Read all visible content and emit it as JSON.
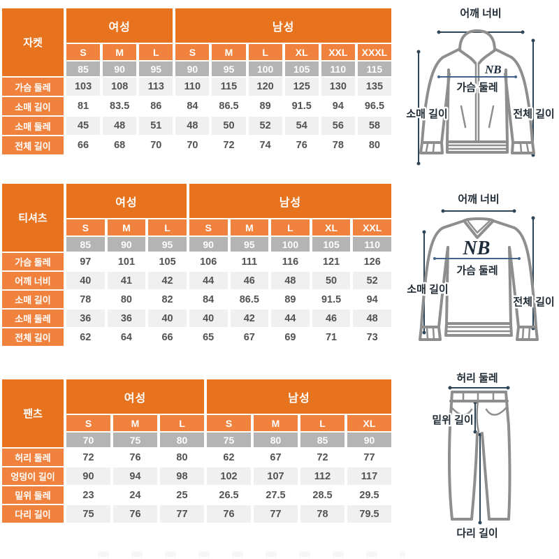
{
  "colors": {
    "header_orange": "#E7731F",
    "subheader_orange": "#F0823D",
    "size_gray": "#B4B4B4",
    "stripe_gray": "#F0F0F0",
    "value_text": "#525252",
    "diagram_outline": "#8E8E8E",
    "dimension_line": "#2E4557",
    "chest_line": "#43648A",
    "diagram_label": "#212B35"
  },
  "tables": [
    {
      "title": "자켓",
      "groups": [
        {
          "label": "여성",
          "sizes": [
            "S",
            "M",
            "L"
          ],
          "nums": [
            "85",
            "90",
            "95"
          ]
        },
        {
          "label": "남성",
          "sizes": [
            "S",
            "M",
            "L",
            "XL",
            "XXL",
            "XXXL"
          ],
          "nums": [
            "90",
            "95",
            "100",
            "105",
            "110",
            "115"
          ]
        }
      ],
      "rows": [
        {
          "label": "가슴 둘레",
          "values": [
            "103",
            "108",
            "113",
            "110",
            "115",
            "120",
            "125",
            "130",
            "135"
          ]
        },
        {
          "label": "소매 길이",
          "values": [
            "81",
            "83.5",
            "86",
            "84",
            "86.5",
            "89",
            "91.5",
            "94",
            "96.5"
          ]
        },
        {
          "label": "소매 둘레",
          "values": [
            "45",
            "48",
            "51",
            "48",
            "50",
            "52",
            "54",
            "56",
            "58"
          ]
        },
        {
          "label": "전체 길이",
          "values": [
            "66",
            "68",
            "70",
            "70",
            "72",
            "74",
            "76",
            "78",
            "80"
          ]
        }
      ]
    },
    {
      "title": "티셔츠",
      "groups": [
        {
          "label": "여성",
          "sizes": [
            "S",
            "M",
            "L"
          ],
          "nums": [
            "85",
            "90",
            "95"
          ]
        },
        {
          "label": "남성",
          "sizes": [
            "S",
            "M",
            "L",
            "XL",
            "XXL"
          ],
          "nums": [
            "90",
            "95",
            "100",
            "105",
            "110"
          ]
        }
      ],
      "rows": [
        {
          "label": "가슴 둘레",
          "values": [
            "97",
            "101",
            "105",
            "106",
            "111",
            "116",
            "121",
            "126"
          ]
        },
        {
          "label": "어깨 너비",
          "values": [
            "40",
            "41",
            "42",
            "44",
            "46",
            "48",
            "50",
            "52"
          ]
        },
        {
          "label": "소매 길이",
          "values": [
            "78",
            "80",
            "82",
            "84",
            "86.5",
            "89",
            "91.5",
            "94"
          ]
        },
        {
          "label": "소매 둘레",
          "values": [
            "36",
            "36",
            "40",
            "40",
            "42",
            "44",
            "46",
            "48"
          ]
        },
        {
          "label": "전체 길이",
          "values": [
            "62",
            "64",
            "66",
            "65",
            "67",
            "69",
            "71",
            "73"
          ]
        }
      ]
    },
    {
      "title": "팬츠",
      "groups": [
        {
          "label": "여성",
          "sizes": [
            "S",
            "M",
            "L"
          ],
          "nums": [
            "70",
            "75",
            "80"
          ]
        },
        {
          "label": "남성",
          "sizes": [
            "S",
            "M",
            "L",
            "XL"
          ],
          "nums": [
            "75",
            "80",
            "85",
            "90"
          ]
        }
      ],
      "rows": [
        {
          "label": "허리 둘레",
          "values": [
            "72",
            "76",
            "80",
            "62",
            "67",
            "72",
            "77"
          ]
        },
        {
          "label": "엉덩이 길이",
          "values": [
            "90",
            "94",
            "98",
            "102",
            "107",
            "112",
            "117"
          ]
        },
        {
          "label": "밑위 둘레",
          "values": [
            "23",
            "24",
            "25",
            "26.5",
            "27.5",
            "28.5",
            "29.5"
          ]
        },
        {
          "label": "다리 길이",
          "values": [
            "75",
            "76",
            "77",
            "76",
            "77",
            "78",
            "79.5"
          ]
        }
      ]
    }
  ],
  "diagrams": {
    "jacket": {
      "logo": "NB",
      "labels": {
        "shoulder": "어깨 너비",
        "chest": "가슴 둘레",
        "sleeve": "소매 길이",
        "total": "전체 길이"
      }
    },
    "tshirt": {
      "logo": "NB",
      "labels": {
        "shoulder": "어깨 너비",
        "chest": "가슴 둘레",
        "sleeve": "소매 길이",
        "total": "전체 길이"
      }
    },
    "pants": {
      "labels": {
        "waist": "허리 둘레",
        "rise": "밑위 길이",
        "leg": "다리 길이"
      }
    }
  }
}
